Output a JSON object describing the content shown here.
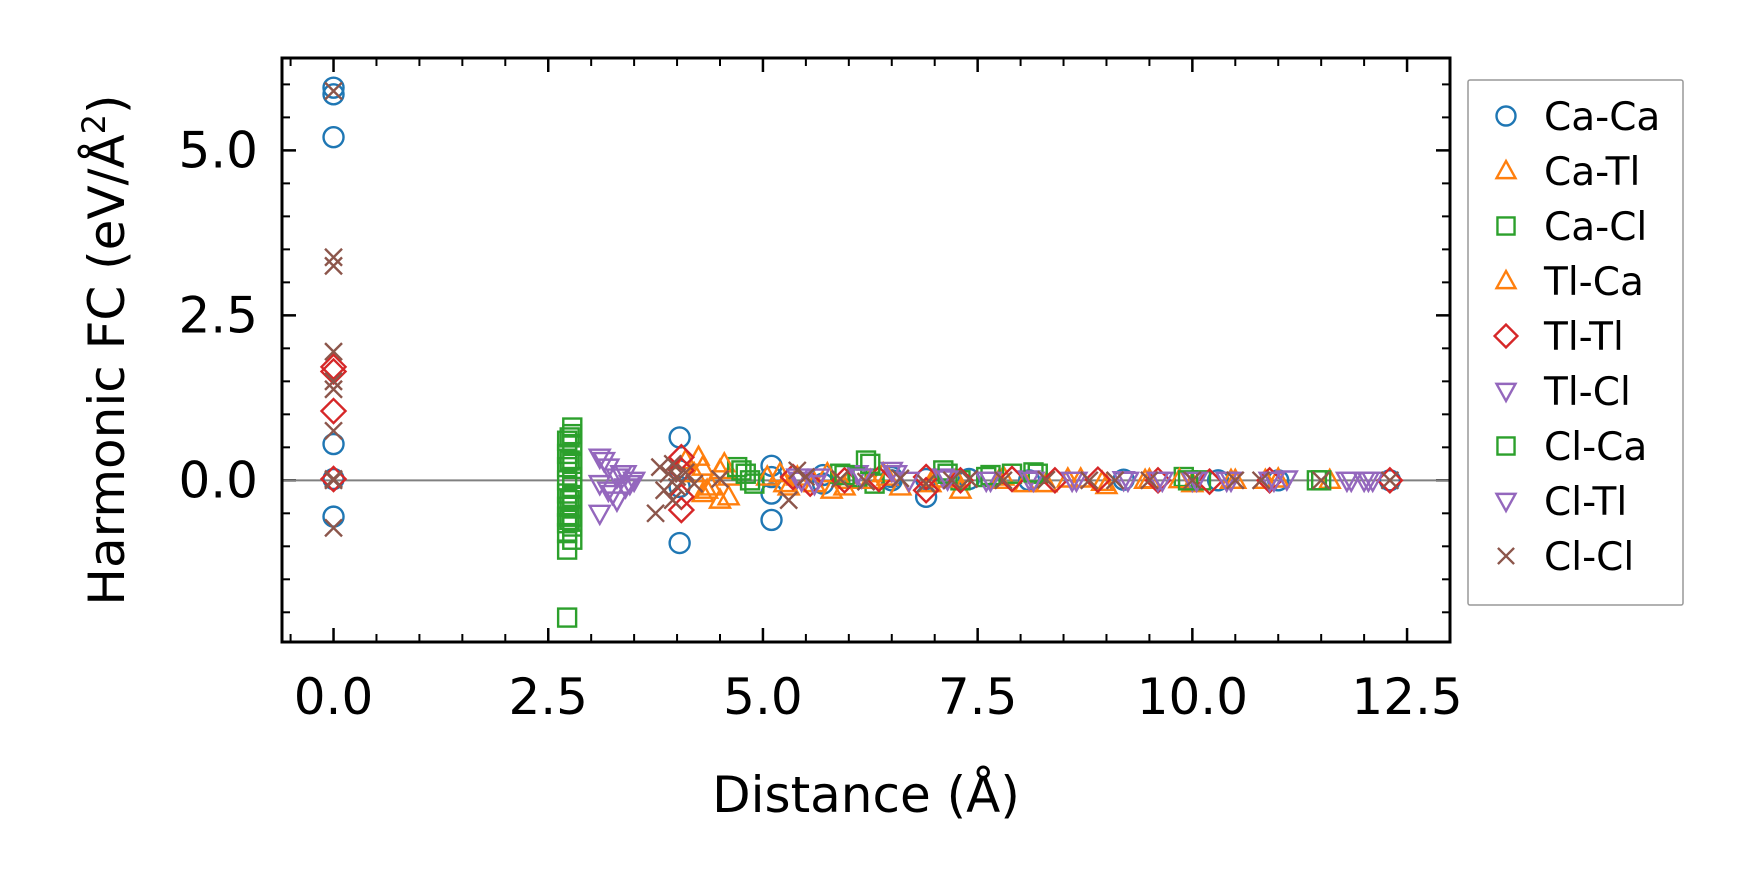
{
  "chart_data": {
    "type": "scatter",
    "title": "",
    "xlabel": "Distance (Å)",
    "ylabel": "Harmonic FC (eV/Å²)",
    "ylabel_main": "Harmonic FC (eV/Å",
    "ylabel_sup": "2",
    "ylabel_close": ")",
    "xlim": [
      -0.6,
      13.0
    ],
    "ylim": [
      -2.45,
      6.4
    ],
    "xticks": [
      0.0,
      2.5,
      5.0,
      7.5,
      10.0,
      12.5
    ],
    "xtick_labels": [
      "0.0",
      "2.5",
      "5.0",
      "7.5",
      "10.0",
      "12.5"
    ],
    "yticks": [
      0.0,
      2.5,
      5.0
    ],
    "ytick_labels": [
      "0.0",
      "2.5",
      "5.0"
    ],
    "zero_line": true,
    "legend_position": "outside-right",
    "series": [
      {
        "name": "Ca-Ca",
        "marker": "circle",
        "color": "#1f77b4",
        "x": [
          0,
          0,
          0,
          0,
          0,
          0,
          4.03,
          4.03,
          4.03,
          4.03,
          5.1,
          5.1,
          5.1,
          5.1,
          5.7,
          5.7,
          6.5,
          6.5,
          6.9,
          6.9,
          7.4,
          8.1,
          9.2,
          10.3,
          11.0,
          12.3
        ],
        "y": [
          5.95,
          5.85,
          5.2,
          0.55,
          0.02,
          -0.55,
          0.65,
          -0.95,
          0.15,
          -0.1,
          0.22,
          -0.6,
          0.05,
          -0.2,
          0.08,
          -0.05,
          0.05,
          0.0,
          -0.25,
          0.02,
          0.02,
          0.0,
          0.01,
          0.0,
          0.0,
          0.0
        ]
      },
      {
        "name": "Ca-Tl",
        "marker": "triangle-up",
        "color": "#ff7f0e",
        "x": [
          4.1,
          4.2,
          4.3,
          4.3,
          4.4,
          4.5,
          4.5,
          4.6,
          4.6,
          5.2,
          5.3,
          5.4,
          5.6,
          5.8,
          6.0,
          6.4,
          6.6,
          7.0,
          7.3,
          7.8,
          8.3,
          8.7,
          9.0,
          9.5,
          10.0,
          10.5,
          11.0,
          11.6
        ],
        "y": [
          0.3,
          0.1,
          0.2,
          -0.2,
          -0.1,
          0.15,
          -0.3,
          0.05,
          -0.25,
          0.1,
          -0.1,
          0.05,
          -0.05,
          -0.15,
          0.0,
          0.1,
          -0.1,
          0.02,
          -0.15,
          0.05,
          -0.05,
          0.02,
          -0.08,
          0.01,
          -0.05,
          0.0,
          0.02,
          0.0
        ]
      },
      {
        "name": "Ca-Cl",
        "marker": "square",
        "color": "#2ca02c",
        "x": [
          2.72,
          2.72,
          2.72,
          2.72,
          2.72,
          2.72,
          2.72,
          2.72,
          2.72,
          2.72,
          2.72,
          2.78,
          2.78,
          2.78,
          2.78,
          2.78,
          2.78,
          2.78,
          2.78,
          2.78,
          2.78,
          2.78,
          4.7,
          4.8,
          4.9,
          5.9,
          6.1,
          6.2,
          6.3,
          7.1,
          7.3,
          7.6,
          7.9,
          8.2,
          9.9,
          10.1,
          11.5
        ],
        "y": [
          0.6,
          0.4,
          0.2,
          0.0,
          -0.2,
          -0.4,
          -0.55,
          -0.65,
          -0.8,
          -1.05,
          -2.08,
          0.8,
          0.7,
          0.55,
          0.25,
          0.05,
          -0.1,
          -0.25,
          -0.4,
          -0.55,
          -0.7,
          -0.9,
          0.2,
          0.1,
          -0.05,
          0.1,
          0.05,
          0.3,
          -0.05,
          0.15,
          0.0,
          0.05,
          0.1,
          0.1,
          0.05,
          0.0,
          0.0
        ]
      },
      {
        "name": "Tl-Ca",
        "marker": "triangle-up",
        "color": "#ff7f0e",
        "x": [
          4.25,
          4.35,
          4.55,
          5.05,
          5.25,
          5.75,
          5.95,
          6.25,
          6.45,
          6.95,
          7.25,
          7.75,
          8.05,
          8.55,
          8.95,
          9.45,
          9.85,
          10.45,
          10.85
        ],
        "y": [
          0.35,
          -0.15,
          0.25,
          0.05,
          -0.05,
          0.1,
          -0.1,
          0.0,
          0.05,
          -0.05,
          0.02,
          0.0,
          -0.05,
          0.02,
          -0.03,
          0.0,
          0.01,
          0.0,
          0.0
        ]
      },
      {
        "name": "Tl-Tl",
        "marker": "diamond",
        "color": "#d62728",
        "x": [
          0,
          0,
          0,
          0,
          4.05,
          4.05,
          4.05,
          4.05,
          5.35,
          5.55,
          5.95,
          6.35,
          6.9,
          6.9,
          7.3,
          7.9,
          8.4,
          8.9,
          9.6,
          10.2,
          10.9,
          12.3
        ],
        "y": [
          1.72,
          1.65,
          1.05,
          0.02,
          0.35,
          0.15,
          -0.25,
          -0.45,
          0.05,
          -0.05,
          0.0,
          0.02,
          0.05,
          -0.15,
          0.0,
          0.02,
          0.0,
          0.01,
          0.0,
          -0.02,
          0.0,
          0.0
        ]
      },
      {
        "name": "Tl-Cl",
        "marker": "triangle-down",
        "color": "#9467bd",
        "x": [
          3.1,
          3.1,
          3.1,
          3.2,
          3.2,
          3.3,
          3.3,
          3.4,
          3.4,
          3.5,
          5.4,
          5.6,
          6.1,
          6.5,
          6.7,
          7.1,
          7.6,
          8.1,
          8.6,
          9.2,
          9.6,
          10.0,
          10.4,
          10.9,
          11.1,
          11.8,
          12.0,
          12.1
        ],
        "y": [
          0.35,
          -0.05,
          -0.5,
          0.2,
          -0.15,
          0.05,
          -0.3,
          0.1,
          -0.1,
          0.0,
          0.05,
          -0.05,
          0.1,
          0.15,
          0.0,
          0.05,
          0.0,
          0.02,
          0.0,
          0.01,
          0.0,
          0.0,
          0.0,
          0.0,
          0.02,
          0.0,
          0.0,
          0.0
        ]
      },
      {
        "name": "Cl-Ca",
        "marker": "square",
        "color": "#2ca02c",
        "x": [
          2.75,
          2.75,
          2.75,
          2.75,
          4.75,
          4.85,
          5.95,
          6.25,
          7.15,
          7.65,
          8.15,
          9.95,
          11.45
        ],
        "y": [
          0.65,
          0.3,
          -0.3,
          -0.6,
          0.15,
          0.0,
          0.08,
          0.25,
          0.1,
          0.08,
          0.12,
          0.0,
          0.0
        ]
      },
      {
        "name": "Cl-Tl",
        "marker": "triangle-down",
        "color": "#9467bd",
        "x": [
          3.15,
          3.25,
          3.35,
          3.45,
          5.45,
          5.65,
          6.15,
          6.55,
          7.15,
          7.65,
          8.15,
          8.65,
          9.25,
          9.65,
          10.05,
          10.45,
          10.95,
          11.85,
          12.05
        ],
        "y": [
          0.3,
          -0.2,
          0.1,
          -0.05,
          0.0,
          0.05,
          0.05,
          0.1,
          0.02,
          0.0,
          0.0,
          0.0,
          0.0,
          0.0,
          0.0,
          0.0,
          0.0,
          0.0,
          0.0
        ]
      },
      {
        "name": "Cl-Cl",
        "marker": "x",
        "color": "#8c564b",
        "x": [
          0,
          0,
          0,
          0,
          0,
          0,
          0,
          0,
          0,
          0,
          3.75,
          3.8,
          3.85,
          3.9,
          3.95,
          3.95,
          4.0,
          4.0,
          4.1,
          4.2,
          4.5,
          5.3,
          5.4,
          5.5,
          5.9,
          6.2,
          6.6,
          6.9,
          7.2,
          7.4,
          7.8,
          8.3,
          8.8,
          9.1,
          9.5,
          10.0,
          10.5,
          10.8,
          11.5,
          12.3
        ],
        "y": [
          5.9,
          3.38,
          3.25,
          1.95,
          1.5,
          1.38,
          0.75,
          0.02,
          -0.72,
          0.0,
          -0.5,
          0.2,
          -0.15,
          0.1,
          0.25,
          -0.3,
          0.05,
          -0.1,
          0.12,
          -0.05,
          0.02,
          -0.3,
          0.15,
          0.05,
          0.02,
          -0.02,
          0.03,
          -0.05,
          0.0,
          0.02,
          0.0,
          0.01,
          0.0,
          0.0,
          0.0,
          0.0,
          0.0,
          0.0,
          0.0,
          0.0
        ]
      }
    ]
  }
}
